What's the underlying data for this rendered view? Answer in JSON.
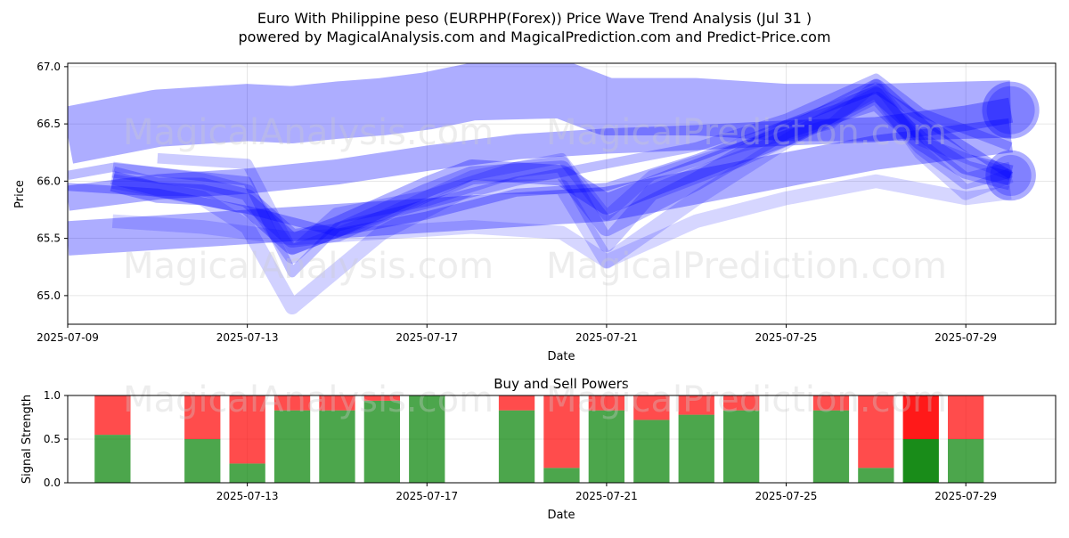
{
  "title_line1": "Euro With Philippine peso (EURPHP(Forex)) Price Wave Trend Analysis (Jul 31 )",
  "title_line2": "powered by MagicalAnalysis.com and MagicalPrediction.com and Predict-Price.com",
  "watermarks": [
    "MagicalAnalysis.com",
    "MagicalPrediction.com"
  ],
  "colors": {
    "wave": "#0000ff",
    "buy": "#008000",
    "sell": "#ff0000",
    "buy_strong": "#00a000",
    "sell_strong": "#ff0000"
  },
  "chart_data": [
    {
      "type": "area",
      "title": "",
      "xlabel": "Date",
      "ylabel": "Price",
      "xlim": [
        "2025-07-09",
        "2025-07-31"
      ],
      "ylim": [
        64.75,
        67.03
      ],
      "x_ticks": [
        "2025-07-09",
        "2025-07-13",
        "2025-07-17",
        "2025-07-21",
        "2025-07-25",
        "2025-07-29"
      ],
      "y_ticks": [
        65.0,
        65.5,
        66.0,
        66.5,
        67.0
      ],
      "grid": true,
      "bands": [
        {
          "x": [
            "2025-07-09",
            "2025-07-11",
            "2025-07-13",
            "2025-07-14",
            "2025-07-15",
            "2025-07-16",
            "2025-07-17",
            "2025-07-18",
            "2025-07-20",
            "2025-07-21",
            "2025-07-23",
            "2025-07-25",
            "2025-07-27",
            "2025-07-29",
            "2025-07-30"
          ],
          "y": [
            66.4,
            66.55,
            66.6,
            66.58,
            66.62,
            66.65,
            66.7,
            66.78,
            66.8,
            66.65,
            66.65,
            66.6,
            66.6,
            66.62,
            66.63
          ],
          "width": 0.5,
          "alpha": 0.32
        },
        {
          "x": [
            "2025-07-09",
            "2025-07-11",
            "2025-07-13",
            "2025-07-15",
            "2025-07-17",
            "2025-07-19",
            "2025-07-21",
            "2025-07-23",
            "2025-07-25",
            "2025-07-27",
            "2025-07-29",
            "2025-07-30"
          ],
          "y": [
            65.85,
            65.95,
            66.0,
            66.08,
            66.2,
            66.3,
            66.35,
            66.38,
            66.42,
            66.45,
            66.55,
            66.62
          ],
          "width": 0.22,
          "alpha": 0.32
        },
        {
          "x": [
            "2025-07-09",
            "2025-07-11",
            "2025-07-13",
            "2025-07-15",
            "2025-07-17",
            "2025-07-19",
            "2025-07-21",
            "2025-07-23",
            "2025-07-25",
            "2025-07-27",
            "2025-07-29",
            "2025-07-30"
          ],
          "y": [
            65.5,
            65.55,
            65.6,
            65.65,
            65.7,
            65.75,
            65.8,
            65.95,
            66.1,
            66.25,
            66.35,
            66.4
          ],
          "width": 0.3,
          "alpha": 0.32
        },
        {
          "x": [
            "2025-07-10",
            "2025-07-11",
            "2025-07-12",
            "2025-07-13",
            "2025-07-14",
            "2025-07-15",
            "2025-07-17",
            "2025-07-18",
            "2025-07-20",
            "2025-07-21",
            "2025-07-23",
            "2025-07-25",
            "2025-07-27",
            "2025-07-28",
            "2025-07-29",
            "2025-07-30"
          ],
          "y": [
            66.0,
            65.9,
            65.88,
            65.8,
            65.45,
            65.6,
            65.95,
            66.1,
            66.05,
            65.8,
            66.1,
            66.4,
            66.8,
            66.45,
            66.15,
            66.05
          ],
          "width": 0.18,
          "alpha": 0.3
        },
        {
          "x": [
            "2025-07-10",
            "2025-07-11",
            "2025-07-12",
            "2025-07-13",
            "2025-07-14",
            "2025-07-15",
            "2025-07-17",
            "2025-07-18",
            "2025-07-20",
            "2025-07-21",
            "2025-07-23",
            "2025-07-25",
            "2025-07-27",
            "2025-07-28",
            "2025-07-29",
            "2025-07-30"
          ],
          "y": [
            66.05,
            65.95,
            65.95,
            65.85,
            65.5,
            65.55,
            65.9,
            66.05,
            66.1,
            65.6,
            66.0,
            66.45,
            66.7,
            66.35,
            66.1,
            66.0
          ],
          "width": 0.16,
          "alpha": 0.25
        },
        {
          "x": [
            "2025-07-10",
            "2025-07-12",
            "2025-07-13",
            "2025-07-14",
            "2025-07-15",
            "2025-07-17",
            "2025-07-19",
            "2025-07-20",
            "2025-07-21",
            "2025-07-22",
            "2025-07-24",
            "2025-07-26",
            "2025-07-27",
            "2025-07-28",
            "2025-07-29",
            "2025-07-30"
          ],
          "y": [
            66.1,
            66.0,
            65.9,
            65.35,
            65.7,
            65.85,
            66.1,
            66.15,
            65.45,
            65.9,
            66.2,
            66.55,
            66.75,
            66.3,
            66.0,
            66.1
          ],
          "width": 0.14,
          "alpha": 0.22
        },
        {
          "x": [
            "2025-07-10",
            "2025-07-12",
            "2025-07-13",
            "2025-07-14",
            "2025-07-16",
            "2025-07-18",
            "2025-07-20",
            "2025-07-21",
            "2025-07-23",
            "2025-07-25",
            "2025-07-27",
            "2025-07-28",
            "2025-07-29",
            "2025-07-30"
          ],
          "y": [
            66.0,
            65.85,
            65.6,
            64.9,
            65.55,
            65.95,
            65.95,
            65.3,
            65.85,
            66.35,
            66.8,
            66.25,
            65.9,
            66.05
          ],
          "width": 0.13,
          "alpha": 0.18
        },
        {
          "x": [
            "2025-07-10",
            "2025-07-12",
            "2025-07-14",
            "2025-07-16",
            "2025-07-18",
            "2025-07-20",
            "2025-07-21",
            "2025-07-23",
            "2025-07-25",
            "2025-07-27",
            "2025-07-29",
            "2025-07-30"
          ],
          "y": [
            65.65,
            65.6,
            65.5,
            65.55,
            65.6,
            65.55,
            65.3,
            65.65,
            65.85,
            66.0,
            65.85,
            65.9
          ],
          "width": 0.12,
          "alpha": 0.16
        },
        {
          "x": [
            "2025-07-09",
            "2025-07-10",
            "2025-07-13",
            "2025-07-14",
            "2025-07-15",
            "2025-07-17",
            "2025-07-19",
            "2025-07-21",
            "2025-07-23",
            "2025-07-25",
            "2025-07-27",
            "2025-07-28",
            "2025-07-30"
          ],
          "y": [
            66.05,
            66.12,
            66.0,
            65.2,
            65.6,
            65.8,
            66.0,
            66.15,
            66.3,
            66.55,
            66.9,
            66.6,
            66.3
          ],
          "width": 0.08,
          "alpha": 0.26
        },
        {
          "x": [
            "2025-07-09",
            "2025-07-11",
            "2025-07-13",
            "2025-07-15",
            "2025-07-17",
            "2025-07-19",
            "2025-07-21",
            "2025-07-23",
            "2025-07-25",
            "2025-07-27",
            "2025-07-30"
          ],
          "y": [
            65.95,
            65.9,
            65.75,
            65.55,
            65.7,
            65.9,
            65.95,
            66.2,
            66.5,
            66.8,
            66.05
          ],
          "width": 0.07,
          "alpha": 0.3
        },
        {
          "x": [
            "2025-07-11",
            "2025-07-13",
            "2025-07-14",
            "2025-07-16",
            "2025-07-18",
            "2025-07-20",
            "2025-07-21",
            "2025-07-22",
            "2025-07-24",
            "2025-07-26",
            "2025-07-27",
            "2025-07-28",
            "2025-07-30"
          ],
          "y": [
            66.2,
            66.15,
            65.4,
            65.7,
            66.05,
            66.2,
            65.7,
            66.05,
            66.3,
            66.5,
            66.85,
            66.35,
            66.05
          ],
          "width": 0.09,
          "alpha": 0.2
        }
      ],
      "endpoint_markers": [
        {
          "x": "2025-07-30",
          "y": 66.62,
          "size": 0.25,
          "alpha": 0.32
        },
        {
          "x": "2025-07-30",
          "y": 66.05,
          "size": 0.22,
          "alpha": 0.32
        },
        {
          "x": "2025-07-30",
          "y": 66.62,
          "size": 0.21,
          "alpha": 0.25
        },
        {
          "x": "2025-07-30",
          "y": 66.05,
          "size": 0.18,
          "alpha": 0.25
        }
      ]
    },
    {
      "type": "bar",
      "title": "Buy and Sell Powers",
      "xlabel": "Date",
      "ylabel": "Signal Strength",
      "xlim": [
        "2025-07-09",
        "2025-07-31"
      ],
      "ylim": [
        0.0,
        1.0
      ],
      "x_ticks": [
        "2025-07-13",
        "2025-07-17",
        "2025-07-21",
        "2025-07-25",
        "2025-07-29"
      ],
      "y_ticks": [
        "0.0",
        "0.5",
        "1.0"
      ],
      "categories": [
        "2025-07-10",
        "2025-07-12",
        "2025-07-13",
        "2025-07-14",
        "2025-07-15",
        "2025-07-16",
        "2025-07-17",
        "2025-07-19",
        "2025-07-20",
        "2025-07-21",
        "2025-07-22",
        "2025-07-23",
        "2025-07-24",
        "2025-07-26",
        "2025-07-27",
        "2025-07-28",
        "2025-07-29"
      ],
      "buy": [
        0.55,
        0.5,
        0.22,
        0.83,
        0.83,
        0.94,
        1.0,
        0.83,
        0.17,
        0.83,
        0.72,
        0.78,
        0.83,
        0.83,
        0.17,
        0.5,
        0.5
      ],
      "sell": [
        0.45,
        0.5,
        0.78,
        0.17,
        0.17,
        0.06,
        0.0,
        0.17,
        0.83,
        0.17,
        0.28,
        0.22,
        0.17,
        0.17,
        0.83,
        0.5,
        0.5
      ],
      "strong": [
        false,
        false,
        false,
        false,
        false,
        false,
        false,
        false,
        false,
        false,
        false,
        false,
        false,
        false,
        false,
        true,
        false
      ]
    }
  ]
}
